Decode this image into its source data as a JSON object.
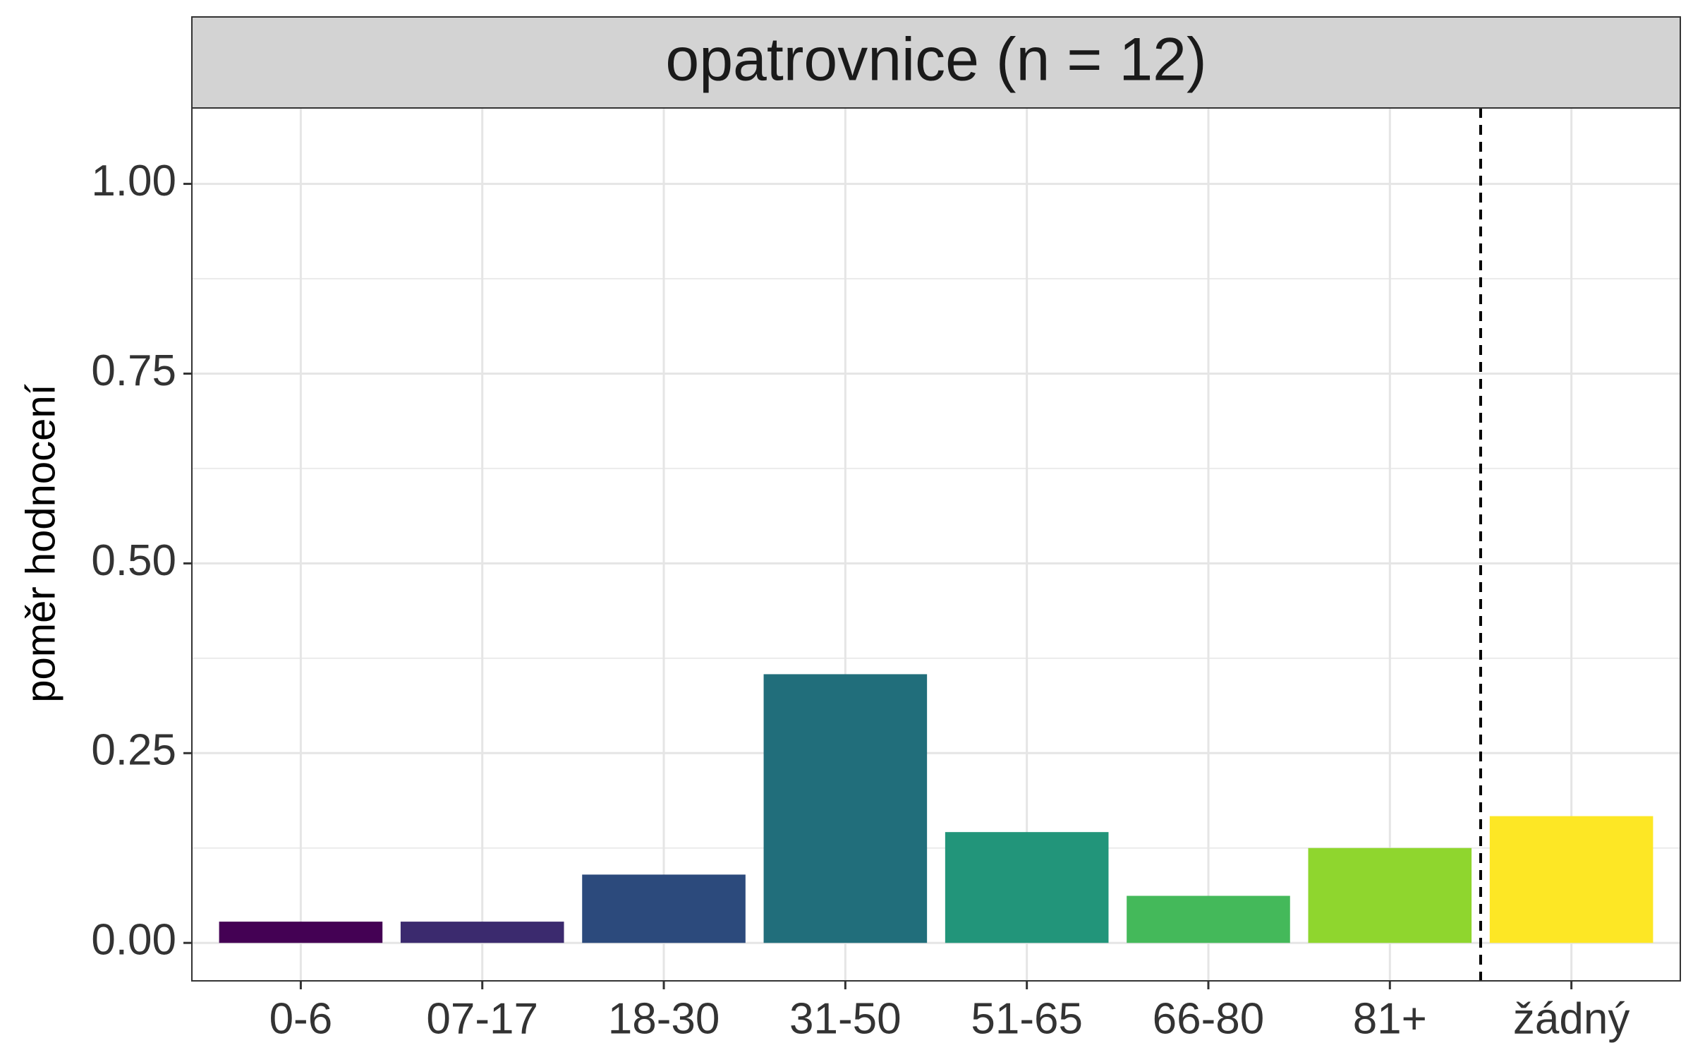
{
  "chart_data": {
    "type": "bar",
    "title": "",
    "facet_label": "opatrovnice (n = 12)",
    "xlabel": "",
    "ylabel": "poměr hodnocení",
    "categories": [
      "0-6",
      "07-17",
      "18-30",
      "31-50",
      "51-65",
      "66-80",
      "81+",
      "žádný"
    ],
    "values": [
      0.028,
      0.028,
      0.09,
      0.354,
      0.146,
      0.062,
      0.125,
      0.167
    ],
    "colors": [
      "#440154",
      "#3b2a6e",
      "#2c4a7c",
      "#216e7b",
      "#22957a",
      "#44b95a",
      "#8fd62e",
      "#fde725"
    ],
    "ylim": [
      -0.05,
      1.1
    ],
    "yticks": [
      0.0,
      0.25,
      0.5,
      0.75,
      1.0
    ],
    "ytick_labels": [
      "0.00",
      "0.25",
      "0.50",
      "0.75",
      "1.00"
    ],
    "grid": true,
    "separator_after_category": "81+",
    "separator_style": "dashed",
    "legend": "none"
  }
}
